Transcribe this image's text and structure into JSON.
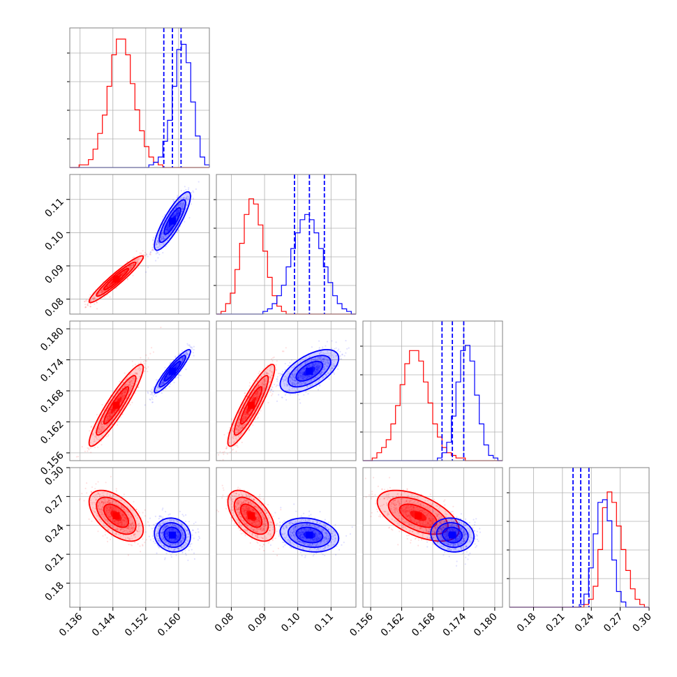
{
  "chart_data": {
    "type": "corner",
    "title": "",
    "colors": {
      "red": "#ff0000",
      "blue": "#0000ff",
      "grid": "#b0b0b0",
      "frame": "#808080"
    },
    "parameters": [
      {
        "range": [
          0.1335,
          0.1675
        ],
        "ticks": [
          0.136,
          0.144,
          0.152,
          0.16
        ],
        "tick_labels": [
          "0.136",
          "0.144",
          "0.152",
          "0.160"
        ]
      },
      {
        "range": [
          0.0755,
          0.1175
        ],
        "ticks": [
          0.08,
          0.09,
          0.1,
          0.11
        ],
        "tick_labels": [
          "0.08",
          "0.09",
          "0.10",
          "0.11"
        ]
      },
      {
        "range": [
          0.1545,
          0.1815
        ],
        "ticks": [
          0.156,
          0.162,
          0.168,
          0.174,
          0.18
        ],
        "tick_labels": [
          "0.156",
          "0.162",
          "0.168",
          "0.174",
          "0.180"
        ]
      },
      {
        "range": [
          0.155,
          0.3
        ],
        "ticks": [
          0.18,
          0.21,
          0.24,
          0.27,
          0.3
        ],
        "tick_labels": [
          "0.18",
          "0.21",
          "0.24",
          "0.27",
          "0.30"
        ]
      }
    ],
    "series": [
      {
        "color": "red",
        "mean": [
          0.1448,
          0.086,
          0.1652,
          0.25
        ],
        "sd": [
          0.003,
          0.0032,
          0.0036,
          0.012
        ],
        "correlation": [
          [
            1,
            0.95,
            0.92,
            -0.55
          ],
          [
            0.95,
            1,
            0.9,
            -0.55
          ],
          [
            0.92,
            0.9,
            1,
            -0.55
          ],
          [
            -0.55,
            -0.55,
            -0.55,
            1
          ]
        ],
        "quantile_lines": false
      },
      {
        "color": "blue",
        "mean": [
          0.1585,
          0.1035,
          0.1718,
          0.23
        ],
        "sd": [
          0.002,
          0.004,
          0.0019,
          0.008
        ],
        "correlation": [
          [
            1,
            0.85,
            0.92,
            -0.1
          ],
          [
            0.85,
            1,
            0.6,
            -0.2
          ],
          [
            0.92,
            0.6,
            1,
            -0.1
          ],
          [
            -0.1,
            -0.2,
            -0.1,
            1
          ]
        ],
        "quantile_lines": true,
        "quantiles": [
          [
            0.1564,
            0.1585,
            0.1606
          ],
          [
            0.099,
            0.1035,
            0.108
          ],
          [
            0.1698,
            0.1718,
            0.174
          ],
          [
            0.221,
            0.229,
            0.2375
          ]
        ]
      }
    ],
    "histograms": [
      {
        "param": 0,
        "bins": [
          0.1335,
          0.1675
        ],
        "red": [
          0,
          0,
          1,
          1,
          3,
          7,
          13,
          20,
          31,
          43,
          49,
          49,
          43,
          32,
          22,
          14,
          8,
          4,
          2,
          1,
          0,
          0,
          0,
          0,
          0,
          0,
          0,
          0,
          0,
          0
        ],
        "blue": [
          0,
          0,
          0,
          0,
          0,
          0,
          0,
          0,
          0,
          0,
          0,
          0,
          0,
          0,
          0,
          0,
          0,
          1,
          2,
          4,
          10,
          18,
          31,
          45,
          47,
          40,
          25,
          12,
          4,
          1
        ]
      },
      {
        "param": 1,
        "bins": [
          0.0755,
          0.1175
        ],
        "red": [
          0,
          1,
          4,
          8,
          17,
          27,
          38,
          44,
          42,
          34,
          24,
          14,
          7,
          3,
          1,
          0,
          0,
          0,
          0,
          0,
          0,
          0,
          0,
          0,
          0,
          0,
          0,
          0,
          0,
          0
        ],
        "blue": [
          0,
          0,
          0,
          0,
          0,
          0,
          0,
          0,
          0,
          0,
          1,
          2,
          4,
          7,
          11,
          18,
          25,
          31,
          36,
          38,
          36,
          31,
          25,
          18,
          12,
          7,
          4,
          2,
          1,
          0
        ]
      },
      {
        "param": 2,
        "bins": [
          0.1545,
          0.1815
        ],
        "red": [
          0,
          0,
          1,
          3,
          5,
          8,
          14,
          21,
          29,
          37,
          42,
          42,
          38,
          30,
          22,
          14,
          9,
          5,
          3,
          2,
          1,
          1,
          0,
          0,
          0,
          0,
          0,
          0,
          0,
          0
        ],
        "blue": [
          0,
          0,
          0,
          0,
          0,
          0,
          0,
          0,
          0,
          0,
          0,
          0,
          0,
          0,
          0,
          0,
          1,
          3,
          7,
          17,
          30,
          42,
          44,
          38,
          25,
          14,
          6,
          2,
          1,
          0
        ]
      },
      {
        "param": 3,
        "bins": [
          0.155,
          0.3
        ],
        "red": [
          0,
          0,
          0,
          0,
          0,
          0,
          0,
          0,
          0,
          0,
          0,
          0,
          0,
          0,
          0,
          0,
          1,
          3,
          8,
          22,
          38,
          44,
          40,
          31,
          22,
          14,
          7,
          3,
          1,
          0
        ],
        "blue": [
          0,
          0,
          0,
          0,
          0,
          0,
          0,
          0,
          0,
          0,
          0,
          0,
          0,
          0,
          0,
          1,
          5,
          15,
          28,
          40,
          41,
          33,
          18,
          6,
          2,
          0,
          0,
          0,
          0,
          0
        ]
      }
    ]
  }
}
